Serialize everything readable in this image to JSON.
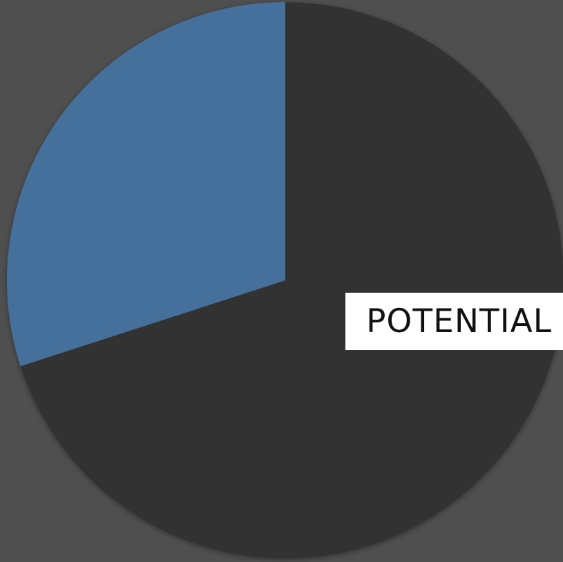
{
  "chart_data": {
    "type": "pie",
    "slices": [
      {
        "label": "",
        "value": 70,
        "color": "#333333"
      },
      {
        "label": "",
        "value": 30,
        "color": "#44709c"
      }
    ],
    "annotation": "POTENTIAL",
    "start_angle_deg": 0,
    "direction": "clockwise"
  },
  "colors": {
    "background": "#4f4f4f",
    "label_background": "#ffffff",
    "label_text": "#111111"
  }
}
